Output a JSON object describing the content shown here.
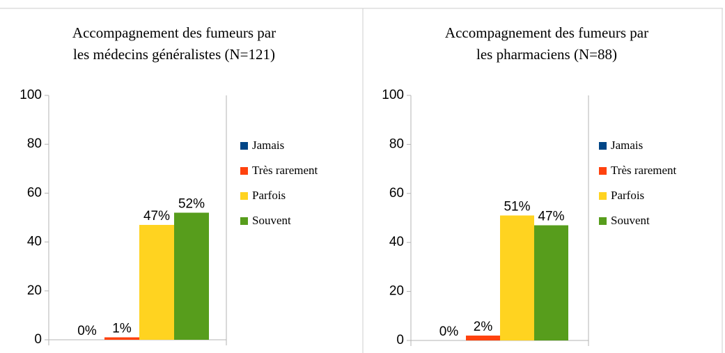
{
  "chart_data": [
    {
      "type": "bar",
      "title": [
        "Accompagnement des fumeurs par",
        "les médecins généralistes (N=121)"
      ],
      "ylim": [
        0,
        100
      ],
      "yticks": [
        0,
        20,
        40,
        60,
        80,
        100
      ],
      "series": [
        {
          "name": "Jamais",
          "color": "#004586",
          "values": [
            0
          ],
          "value_labels": [
            "0%"
          ]
        },
        {
          "name": "Très rarement",
          "color": "#ff420e",
          "values": [
            1
          ],
          "value_labels": [
            "1%"
          ]
        },
        {
          "name": "Parfois",
          "color": "#ffd320",
          "values": [
            47
          ],
          "value_labels": [
            "47%"
          ]
        },
        {
          "name": "Souvent",
          "color": "#579d1c",
          "values": [
            52
          ],
          "value_labels": [
            "52%"
          ]
        }
      ]
    },
    {
      "type": "bar",
      "title": [
        "Accompagnement des fumeurs par",
        "les pharmaciens (N=88)"
      ],
      "ylim": [
        0,
        100
      ],
      "yticks": [
        0,
        20,
        40,
        60,
        80,
        100
      ],
      "series": [
        {
          "name": "Jamais",
          "color": "#004586",
          "values": [
            0
          ],
          "value_labels": [
            "0%"
          ]
        },
        {
          "name": "Très rarement",
          "color": "#ff420e",
          "values": [
            2
          ],
          "value_labels": [
            "2%"
          ]
        },
        {
          "name": "Parfois",
          "color": "#ffd320",
          "values": [
            51
          ],
          "value_labels": [
            "51%"
          ]
        },
        {
          "name": "Souvent",
          "color": "#579d1c",
          "values": [
            47
          ],
          "value_labels": [
            "47%"
          ]
        }
      ]
    }
  ]
}
